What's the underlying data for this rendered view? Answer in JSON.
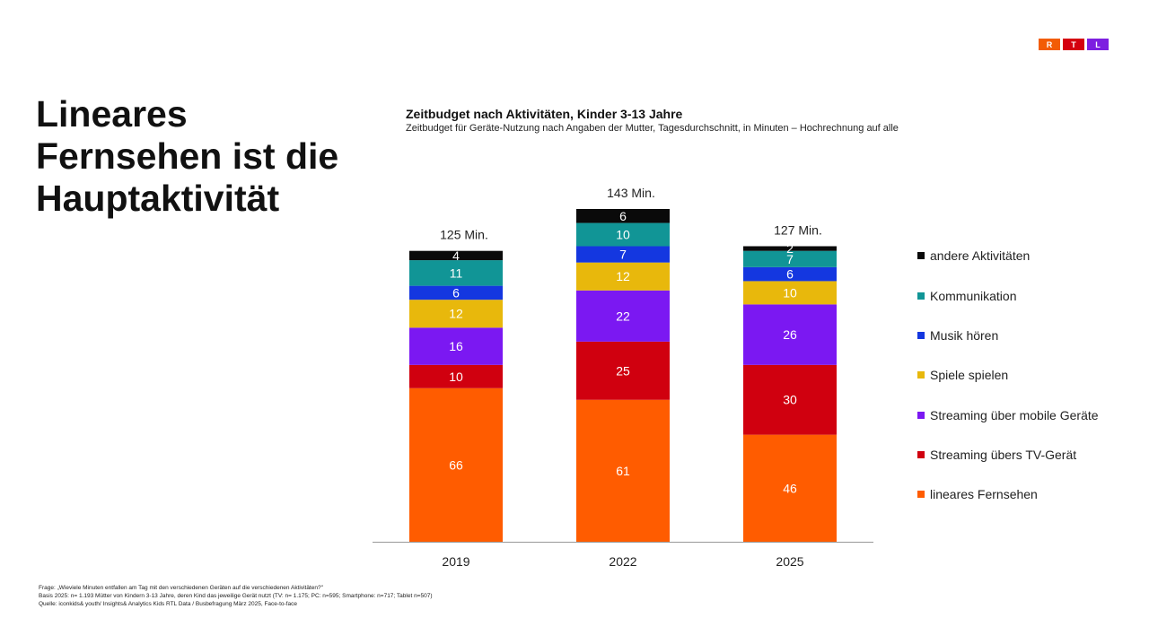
{
  "brand": {
    "letters": [
      "R",
      "T",
      "L"
    ],
    "colors": [
      "#f25c05",
      "#d4000f",
      "#7d1fe0"
    ]
  },
  "headline": {
    "lines": [
      "Lineares",
      "Fernsehen ist die",
      "Hauptaktivität"
    ]
  },
  "chart_data": {
    "type": "bar",
    "stacked": true,
    "title": "Zeitbudget nach Aktivitäten, Kinder 3-13 Jahre",
    "subtitle": "Zeitbudget für Geräte-Nutzung nach Angaben der Mutter, Tagesdurchschnitt, in Minuten – Hochrechnung auf alle",
    "categories": [
      "2019",
      "2022",
      "2025"
    ],
    "totals": [
      "125 Min.",
      "143 Min.",
      "127 Min."
    ],
    "ylim": [
      0,
      143
    ],
    "xlabel": "",
    "ylabel": "",
    "grid": false,
    "legend_position": "right",
    "series": [
      {
        "name": "lineares Fernsehen",
        "color": "#ff5c00",
        "values": [
          66,
          61,
          46
        ]
      },
      {
        "name": "Streaming übers TV-Gerät",
        "color": "#d0000f",
        "values": [
          10,
          25,
          30
        ]
      },
      {
        "name": "Streaming über mobile Geräte",
        "color": "#7b18f2",
        "values": [
          16,
          22,
          26
        ]
      },
      {
        "name": "Spiele spielen",
        "color": "#e8b80c",
        "values": [
          12,
          12,
          10
        ]
      },
      {
        "name": "Musik hören",
        "color": "#1437e0",
        "values": [
          6,
          7,
          6
        ]
      },
      {
        "name": "Kommunikation",
        "color": "#119596",
        "values": [
          11,
          10,
          7
        ]
      },
      {
        "name": "andere Aktivitäten",
        "color": "#0a0a0a",
        "values": [
          4,
          6,
          2
        ]
      }
    ]
  },
  "footnotes": [
    "Frage: „Wieviele Minuten entfallen am Tag mit den verschiedenen Geräten auf die verschiedenen Aktivitäten?\"",
    "Basis 2025: n= 1.193 Mütter von Kindern 3-13 Jahre, deren Kind das jeweilige Gerät nutzt (TV: n= 1.175; PC: n=595; Smartphone: n=717; Tablet n=507)",
    "Quelle: iconkids& youth/ Insights& Analytics Kids RTL Data / Busbefragung März 2025, Face-to-face"
  ]
}
